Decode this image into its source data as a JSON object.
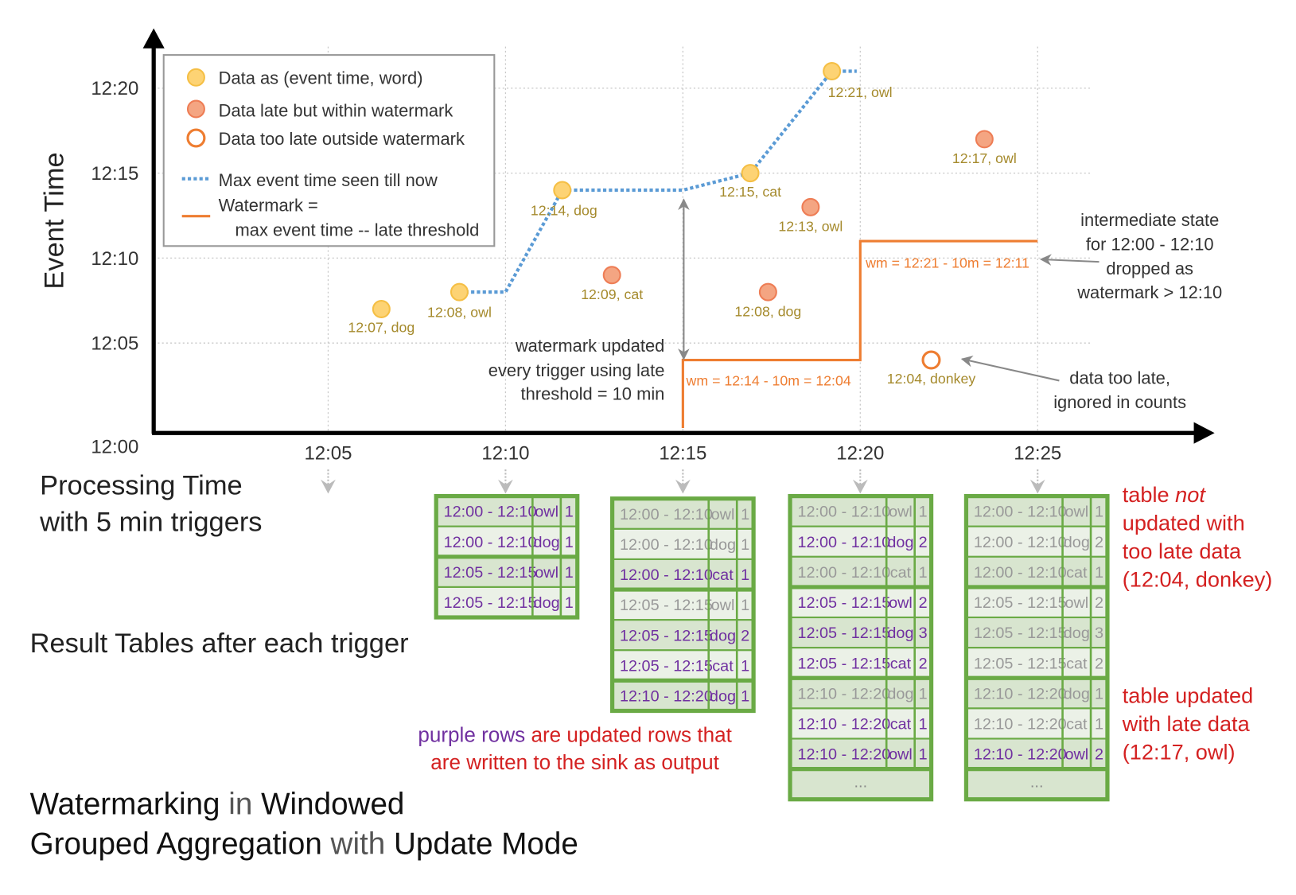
{
  "colors": {
    "on_time": "#fdd374",
    "on_time_stroke": "#f5bf45",
    "late": "#f4a582",
    "late_stroke": "#ee7d55",
    "too_late_stroke": "#ee7d31",
    "max_event_line": "#5b9bd5",
    "watermark_line": "#ee7d31",
    "table_border": "#6aaa45",
    "row_dark": "#d8e5cf",
    "row_light": "#ebf1e7",
    "updated_text": "#7030a0",
    "unchanged_text": "#999999",
    "red_note": "#d42121"
  },
  "axes": {
    "y_title": "Event Time",
    "x_title_line1": "Processing Time",
    "x_title_line2": "with 5 min triggers",
    "y_ticks": [
      "12:00",
      "12:05",
      "12:10",
      "12:15",
      "12:20"
    ],
    "x_ticks": [
      "12:05",
      "12:10",
      "12:15",
      "12:20",
      "12:25"
    ]
  },
  "legend": {
    "on_time": "Data as (event time, word)",
    "late": "Data late but within watermark",
    "too_late": "Data too late outside watermark",
    "max_event": "Max event time seen till now",
    "watermark_line1": "Watermark =",
    "watermark_line2": "max event time -- late threshold"
  },
  "points": [
    {
      "label": "12:07, dog",
      "proc_min": 6.5,
      "event_min": 7,
      "kind": "on_time"
    },
    {
      "label": "12:08, owl",
      "proc_min": 8.7,
      "event_min": 8,
      "kind": "on_time"
    },
    {
      "label": "12:14, dog",
      "proc_min": 11.6,
      "event_min": 14,
      "kind": "on_time"
    },
    {
      "label": "12:09, cat",
      "proc_min": 13.0,
      "event_min": 9,
      "kind": "late"
    },
    {
      "label": "12:15, cat",
      "proc_min": 16.9,
      "event_min": 15,
      "kind": "on_time"
    },
    {
      "label": "12:08, dog",
      "proc_min": 17.4,
      "event_min": 8,
      "kind": "late"
    },
    {
      "label": "12:13, owl",
      "proc_min": 18.6,
      "event_min": 13,
      "kind": "late"
    },
    {
      "label": "12:21, owl",
      "proc_min": 19.2,
      "event_min": 21,
      "kind": "on_time"
    },
    {
      "label": "12:04, donkey",
      "proc_min": 22.0,
      "event_min": 4,
      "kind": "too_late"
    },
    {
      "label": "12:17, owl",
      "proc_min": 23.5,
      "event_min": 17,
      "kind": "late"
    }
  ],
  "max_event_line": [
    [
      8.7,
      8
    ],
    [
      10,
      8
    ],
    [
      11.6,
      14
    ],
    [
      15,
      14
    ],
    [
      16.9,
      15
    ],
    [
      19.2,
      21
    ],
    [
      19.9,
      21
    ]
  ],
  "watermark_line": [
    [
      15,
      0
    ],
    [
      15,
      4
    ],
    [
      20,
      4
    ],
    [
      20,
      11
    ],
    [
      25,
      11
    ]
  ],
  "annotations": {
    "wm_update": [
      "watermark updated",
      "every trigger using late",
      "threshold = 10 min"
    ],
    "wm1": "wm = 12:14 - 10m = 12:04",
    "wm2": "wm = 12:21 - 10m = 12:11",
    "dropped": [
      "intermediate state",
      "for 12:00 - 12:10",
      "dropped as",
      "watermark > 12:10"
    ],
    "too_late": [
      "data too late,",
      "ignored in counts"
    ]
  },
  "result_tables_title": "Result Tables after each trigger",
  "tables": [
    {
      "trigger": "12:10",
      "rows": [
        {
          "window": "12:00 - 12:10",
          "word": "owl",
          "count": "1",
          "updated": true
        },
        {
          "window": "12:00 - 12:10",
          "word": "dog",
          "count": "1",
          "updated": true
        },
        {
          "window": "12:05 - 12:15",
          "word": "owl",
          "count": "1",
          "updated": true
        },
        {
          "window": "12:05 - 12:15",
          "word": "dog",
          "count": "1",
          "updated": true
        }
      ],
      "more": false
    },
    {
      "trigger": "12:15",
      "rows": [
        {
          "window": "12:00 - 12:10",
          "word": "owl",
          "count": "1",
          "updated": false
        },
        {
          "window": "12:00 - 12:10",
          "word": "dog",
          "count": "1",
          "updated": false
        },
        {
          "window": "12:00 - 12:10",
          "word": "cat",
          "count": "1",
          "updated": true
        },
        {
          "window": "12:05 - 12:15",
          "word": "owl",
          "count": "1",
          "updated": false
        },
        {
          "window": "12:05 - 12:15",
          "word": "dog",
          "count": "2",
          "updated": true
        },
        {
          "window": "12:05 - 12:15",
          "word": "cat",
          "count": "1",
          "updated": true
        },
        {
          "window": "12:10 - 12:20",
          "word": "dog",
          "count": "1",
          "updated": true
        }
      ],
      "more": false
    },
    {
      "trigger": "12:20",
      "rows": [
        {
          "window": "12:00 - 12:10",
          "word": "owl",
          "count": "1",
          "updated": false
        },
        {
          "window": "12:00 - 12:10",
          "word": "dog",
          "count": "2",
          "updated": true
        },
        {
          "window": "12:00 - 12:10",
          "word": "cat",
          "count": "1",
          "updated": false
        },
        {
          "window": "12:05 - 12:15",
          "word": "owl",
          "count": "2",
          "updated": true
        },
        {
          "window": "12:05 - 12:15",
          "word": "dog",
          "count": "3",
          "updated": true
        },
        {
          "window": "12:05 - 12:15",
          "word": "cat",
          "count": "2",
          "updated": true
        },
        {
          "window": "12:10 - 12:20",
          "word": "dog",
          "count": "1",
          "updated": false
        },
        {
          "window": "12:10 - 12:20",
          "word": "cat",
          "count": "1",
          "updated": true
        },
        {
          "window": "12:10 - 12:20",
          "word": "owl",
          "count": "1",
          "updated": true
        }
      ],
      "more": true
    },
    {
      "trigger": "12:25",
      "rows": [
        {
          "window": "12:00 - 12:10",
          "word": "owl",
          "count": "1",
          "updated": false
        },
        {
          "window": "12:00 - 12:10",
          "word": "dog",
          "count": "2",
          "updated": false
        },
        {
          "window": "12:00 - 12:10",
          "word": "cat",
          "count": "1",
          "updated": false
        },
        {
          "window": "12:05 - 12:15",
          "word": "owl",
          "count": "2",
          "updated": false
        },
        {
          "window": "12:05 - 12:15",
          "word": "dog",
          "count": "3",
          "updated": false
        },
        {
          "window": "12:05 - 12:15",
          "word": "cat",
          "count": "2",
          "updated": false
        },
        {
          "window": "12:10 - 12:20",
          "word": "dog",
          "count": "1",
          "updated": false
        },
        {
          "window": "12:10 - 12:20",
          "word": "cat",
          "count": "1",
          "updated": false
        },
        {
          "window": "12:10 - 12:20",
          "word": "owl",
          "count": "2",
          "updated": true
        }
      ],
      "more": true
    }
  ],
  "more_rows": "...",
  "purple_note": {
    "purple": "purple rows",
    "rest1": " are updated rows that",
    "line2": "are written to the sink as output"
  },
  "red_notes": {
    "not_updated": {
      "l1a": "table ",
      "l1b": "not",
      "l2": "updated with",
      "l3": "too late data",
      "l4": "(12:04, donkey)"
    },
    "updated": {
      "l1": "table updated",
      "l2": "with late data",
      "l3": "(12:17, owl)"
    }
  },
  "caption": {
    "w1": "Watermarking",
    "w2": " in ",
    "w3": "Windowed",
    "w4": "Grouped Aggregation",
    "w5": " with ",
    "w6": "Update Mode"
  }
}
